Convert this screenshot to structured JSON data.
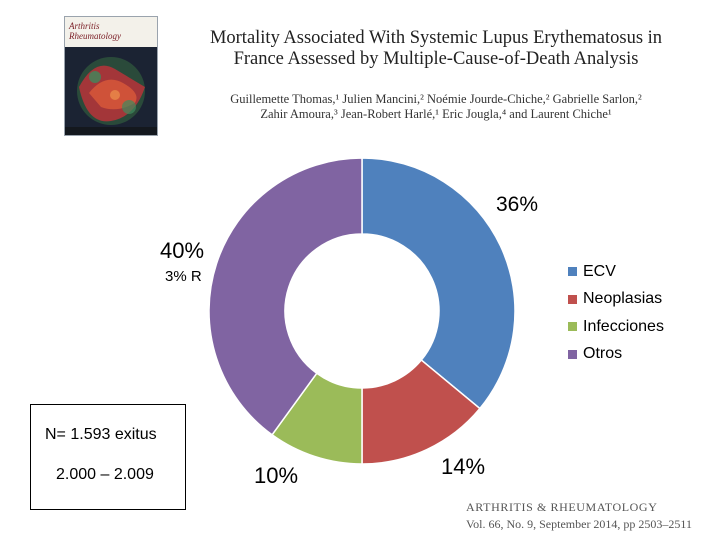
{
  "journal_cover": {
    "logo_text": "Arthritis\nRheumatology"
  },
  "paper": {
    "title_line1": "Mortality Associated With Systemic Lupus Erythematosus in",
    "title_line2": "France Assessed by Multiple-Cause-of-Death Analysis",
    "authors_line1": "Guillemette Thomas,¹ Julien Mancini,² Noémie Jourde-Chiche,² Gabrielle Sarlon,²",
    "authors_line2": "Zahir Amoura,³ Jean-Robert Harlé,¹ Eric Jougla,⁴ and Laurent Chiche¹"
  },
  "chart_data": {
    "type": "pie",
    "donut": true,
    "categories": [
      "ECV",
      "Neoplasias",
      "Infecciones",
      "Otros"
    ],
    "values": [
      36,
      14,
      10,
      40
    ],
    "labels": [
      "36%",
      "14%",
      "10%",
      "40%"
    ],
    "colors": [
      "#4f81bd",
      "#c0504d",
      "#9bbb59",
      "#8064a2"
    ],
    "legend": [
      "ECV",
      "Neoplasias",
      "Infecciones",
      "Otros"
    ],
    "legend_position": "right",
    "annotation": "3% R"
  },
  "info_box": {
    "n_text": "N= 1.593 exitus",
    "years_text": "2.000 – 2.009"
  },
  "journal_ref": {
    "name": "ARTHRITIS & RHEUMATOLOGY",
    "citation": "Vol. 66, No. 9, September 2014, pp 2503–2511"
  }
}
